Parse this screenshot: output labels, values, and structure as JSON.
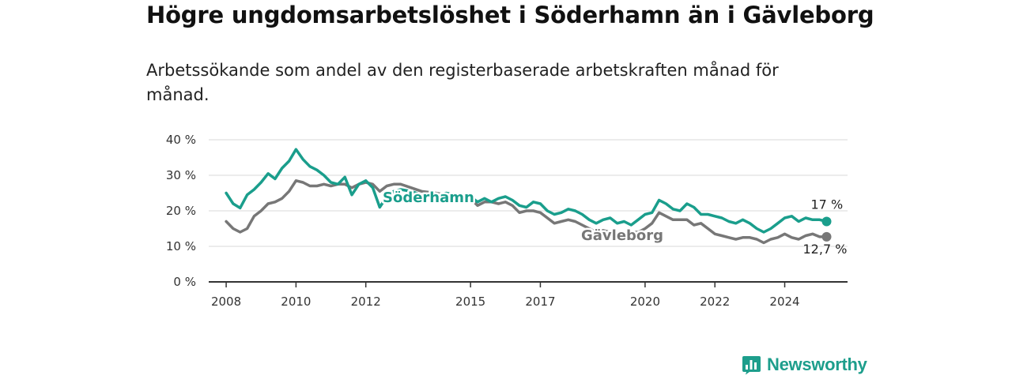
{
  "title": "Högre ungdomsarbetslöshet i Söderhamn än i Gävleborg",
  "subtitle": "Arbetssökande som andel av den registerbaserade arbetskraften månad för månad.",
  "brand": "Newsworthy",
  "colors": {
    "soderhamn": "#1a9e8c",
    "gavleborg": "#777777",
    "grid": "#d9d9d9",
    "axis": "#333333"
  },
  "chart_data": {
    "type": "line",
    "title": "Högre ungdomsarbetslöshet i Söderhamn än i Gävleborg",
    "subtitle": "Arbetssökande som andel av den registerbaserade arbetskraften månad för månad.",
    "xlabel": "",
    "ylabel": "",
    "x_ticks": [
      "2008",
      "2010",
      "2012",
      "2015",
      "2017",
      "2020",
      "2022",
      "2024"
    ],
    "x_tick_values": [
      2008,
      2010,
      2012,
      2015,
      2017,
      2020,
      2022,
      2024
    ],
    "y_ticks": [
      "0 %",
      "10 %",
      "20 %",
      "30 %",
      "40 %"
    ],
    "y_tick_values": [
      0,
      10,
      20,
      30,
      40
    ],
    "xlim": [
      2007.5,
      2025.8
    ],
    "ylim": [
      0,
      40
    ],
    "grid": true,
    "series": [
      {
        "name": "Söderhamn",
        "end_label": "17 %",
        "points": [
          [
            2008.0,
            25.0
          ],
          [
            2008.2,
            22.0
          ],
          [
            2008.4,
            20.8
          ],
          [
            2008.6,
            24.5
          ],
          [
            2008.8,
            26.0
          ],
          [
            2009.0,
            28.0
          ],
          [
            2009.2,
            30.5
          ],
          [
            2009.4,
            29.0
          ],
          [
            2009.6,
            32.0
          ],
          [
            2009.8,
            34.0
          ],
          [
            2010.0,
            37.3
          ],
          [
            2010.2,
            34.5
          ],
          [
            2010.4,
            32.5
          ],
          [
            2010.6,
            31.5
          ],
          [
            2010.8,
            30.0
          ],
          [
            2011.0,
            28.0
          ],
          [
            2011.2,
            27.5
          ],
          [
            2011.4,
            29.5
          ],
          [
            2011.6,
            24.5
          ],
          [
            2011.8,
            27.5
          ],
          [
            2012.0,
            28.5
          ],
          [
            2012.2,
            26.5
          ],
          [
            2012.4,
            21.0
          ],
          [
            2012.6,
            24.0
          ],
          [
            2012.8,
            25.5
          ],
          [
            2013.0,
            26.0
          ],
          [
            2013.3,
            25.5
          ],
          [
            2013.6,
            24.5
          ],
          [
            2014.0,
            24.0
          ],
          [
            2014.3,
            25.0
          ],
          [
            2014.6,
            24.5
          ],
          [
            2015.0,
            24.0
          ],
          [
            2015.2,
            22.5
          ],
          [
            2015.4,
            23.5
          ],
          [
            2015.6,
            22.5
          ],
          [
            2015.8,
            23.5
          ],
          [
            2016.0,
            24.0
          ],
          [
            2016.2,
            23.0
          ],
          [
            2016.4,
            21.5
          ],
          [
            2016.6,
            21.0
          ],
          [
            2016.8,
            22.5
          ],
          [
            2017.0,
            22.0
          ],
          [
            2017.2,
            20.0
          ],
          [
            2017.4,
            19.0
          ],
          [
            2017.6,
            19.5
          ],
          [
            2017.8,
            20.5
          ],
          [
            2018.0,
            20.0
          ],
          [
            2018.2,
            19.0
          ],
          [
            2018.4,
            17.5
          ],
          [
            2018.6,
            16.5
          ],
          [
            2018.8,
            17.5
          ],
          [
            2019.0,
            18.0
          ],
          [
            2019.2,
            16.5
          ],
          [
            2019.4,
            17.0
          ],
          [
            2019.6,
            16.0
          ],
          [
            2019.8,
            17.5
          ],
          [
            2020.0,
            19.0
          ],
          [
            2020.2,
            19.5
          ],
          [
            2020.4,
            23.0
          ],
          [
            2020.6,
            22.0
          ],
          [
            2020.8,
            20.5
          ],
          [
            2021.0,
            20.0
          ],
          [
            2021.2,
            22.0
          ],
          [
            2021.4,
            21.0
          ],
          [
            2021.6,
            19.0
          ],
          [
            2021.8,
            19.0
          ],
          [
            2022.0,
            18.5
          ],
          [
            2022.2,
            18.0
          ],
          [
            2022.4,
            17.0
          ],
          [
            2022.6,
            16.5
          ],
          [
            2022.8,
            17.5
          ],
          [
            2023.0,
            16.5
          ],
          [
            2023.2,
            15.0
          ],
          [
            2023.4,
            14.0
          ],
          [
            2023.6,
            15.0
          ],
          [
            2023.8,
            16.5
          ],
          [
            2024.0,
            18.0
          ],
          [
            2024.2,
            18.5
          ],
          [
            2024.4,
            17.0
          ],
          [
            2024.6,
            18.0
          ],
          [
            2024.8,
            17.5
          ],
          [
            2025.0,
            17.5
          ],
          [
            2025.2,
            17.0
          ]
        ]
      },
      {
        "name": "Gävleborg",
        "end_label": "12,7 %",
        "points": [
          [
            2008.0,
            17.0
          ],
          [
            2008.2,
            15.0
          ],
          [
            2008.4,
            14.0
          ],
          [
            2008.6,
            15.0
          ],
          [
            2008.8,
            18.5
          ],
          [
            2009.0,
            20.0
          ],
          [
            2009.2,
            22.0
          ],
          [
            2009.4,
            22.5
          ],
          [
            2009.6,
            23.5
          ],
          [
            2009.8,
            25.5
          ],
          [
            2010.0,
            28.5
          ],
          [
            2010.2,
            28.0
          ],
          [
            2010.4,
            27.0
          ],
          [
            2010.6,
            27.0
          ],
          [
            2010.8,
            27.5
          ],
          [
            2011.0,
            27.0
          ],
          [
            2011.2,
            27.5
          ],
          [
            2011.4,
            27.5
          ],
          [
            2011.6,
            26.5
          ],
          [
            2011.8,
            27.5
          ],
          [
            2012.0,
            28.0
          ],
          [
            2012.2,
            27.5
          ],
          [
            2012.4,
            25.5
          ],
          [
            2012.6,
            27.0
          ],
          [
            2012.8,
            27.5
          ],
          [
            2013.0,
            27.5
          ],
          [
            2013.3,
            26.5
          ],
          [
            2013.6,
            25.5
          ],
          [
            2014.0,
            25.0
          ],
          [
            2014.3,
            24.5
          ],
          [
            2014.6,
            24.0
          ],
          [
            2015.0,
            23.5
          ],
          [
            2015.2,
            21.5
          ],
          [
            2015.4,
            22.5
          ],
          [
            2015.6,
            22.5
          ],
          [
            2015.8,
            22.0
          ],
          [
            2016.0,
            22.5
          ],
          [
            2016.2,
            21.5
          ],
          [
            2016.4,
            19.5
          ],
          [
            2016.6,
            20.0
          ],
          [
            2016.8,
            20.0
          ],
          [
            2017.0,
            19.5
          ],
          [
            2017.2,
            18.0
          ],
          [
            2017.4,
            16.5
          ],
          [
            2017.6,
            17.0
          ],
          [
            2017.8,
            17.5
          ],
          [
            2018.0,
            17.0
          ],
          [
            2018.2,
            16.0
          ],
          [
            2018.4,
            15.0
          ],
          [
            2018.6,
            14.0
          ],
          [
            2018.8,
            14.5
          ],
          [
            2019.0,
            14.0
          ],
          [
            2019.2,
            13.0
          ],
          [
            2019.4,
            13.5
          ],
          [
            2019.6,
            14.0
          ],
          [
            2019.8,
            14.0
          ],
          [
            2020.0,
            15.0
          ],
          [
            2020.2,
            16.5
          ],
          [
            2020.4,
            19.5
          ],
          [
            2020.6,
            18.5
          ],
          [
            2020.8,
            17.5
          ],
          [
            2021.0,
            17.5
          ],
          [
            2021.2,
            17.5
          ],
          [
            2021.4,
            16.0
          ],
          [
            2021.6,
            16.5
          ],
          [
            2021.8,
            15.0
          ],
          [
            2022.0,
            13.5
          ],
          [
            2022.2,
            13.0
          ],
          [
            2022.4,
            12.5
          ],
          [
            2022.6,
            12.0
          ],
          [
            2022.8,
            12.5
          ],
          [
            2023.0,
            12.5
          ],
          [
            2023.2,
            12.0
          ],
          [
            2023.4,
            11.0
          ],
          [
            2023.6,
            12.0
          ],
          [
            2023.8,
            12.5
          ],
          [
            2024.0,
            13.5
          ],
          [
            2024.2,
            12.5
          ],
          [
            2024.4,
            12.0
          ],
          [
            2024.6,
            13.0
          ],
          [
            2024.8,
            13.5
          ],
          [
            2025.0,
            12.7
          ],
          [
            2025.2,
            12.7
          ]
        ]
      }
    ]
  }
}
